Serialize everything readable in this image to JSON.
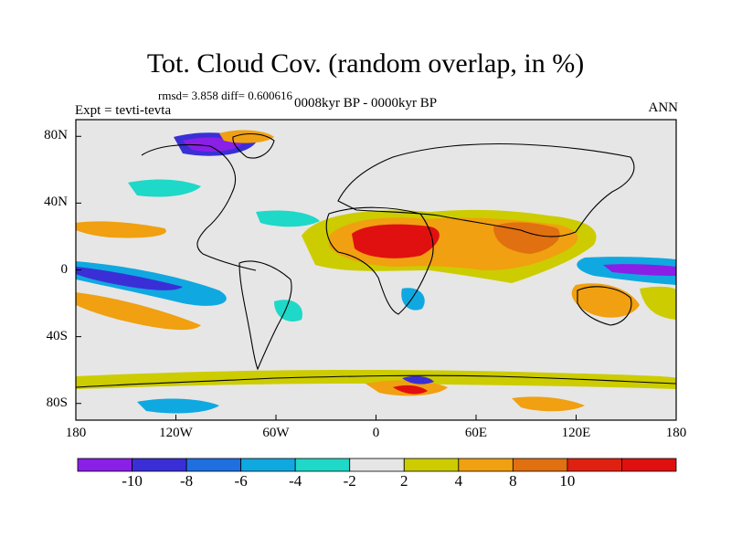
{
  "title": "Tot. Cloud Cov. (random overlap, in %)",
  "stats": "rmsd= 3.858 diff= 0.600616",
  "period": "0008kyr BP - 0000kyr BP",
  "expt": "Expt = tevti-tevta",
  "season": "ANN",
  "lat_labels": [
    "80N",
    "40N",
    "0",
    "40S",
    "80S"
  ],
  "lon_labels": [
    "180",
    "120W",
    "60W",
    "0",
    "60E",
    "120E",
    "180"
  ],
  "colorbar": {
    "labels": [
      "-10",
      "-8",
      "-6",
      "-4",
      "-2",
      "2",
      "4",
      "8",
      "10"
    ],
    "colors": [
      "#8a1fe6",
      "#3a2fd6",
      "#1f6fe0",
      "#10a8e0",
      "#1ed8c8",
      "#e6e6e6",
      "#cccc00",
      "#f0a010",
      "#e07010",
      "#e02010",
      "#e01010"
    ]
  },
  "map_data": {
    "palette": {
      "neutral": "#e6e6e6",
      "pos2": "#cccc00",
      "pos4": "#f0a010",
      "pos8": "#e07010",
      "pos10": "#e01010",
      "neg2": "#1ed8c8",
      "neg4": "#10a8e0",
      "neg6": "#1f6fe0",
      "neg8": "#3a2fd6",
      "neg10": "#8a1fe6"
    },
    "lon_range": [
      -180,
      180
    ],
    "lat_range": [
      -90,
      90
    ]
  }
}
